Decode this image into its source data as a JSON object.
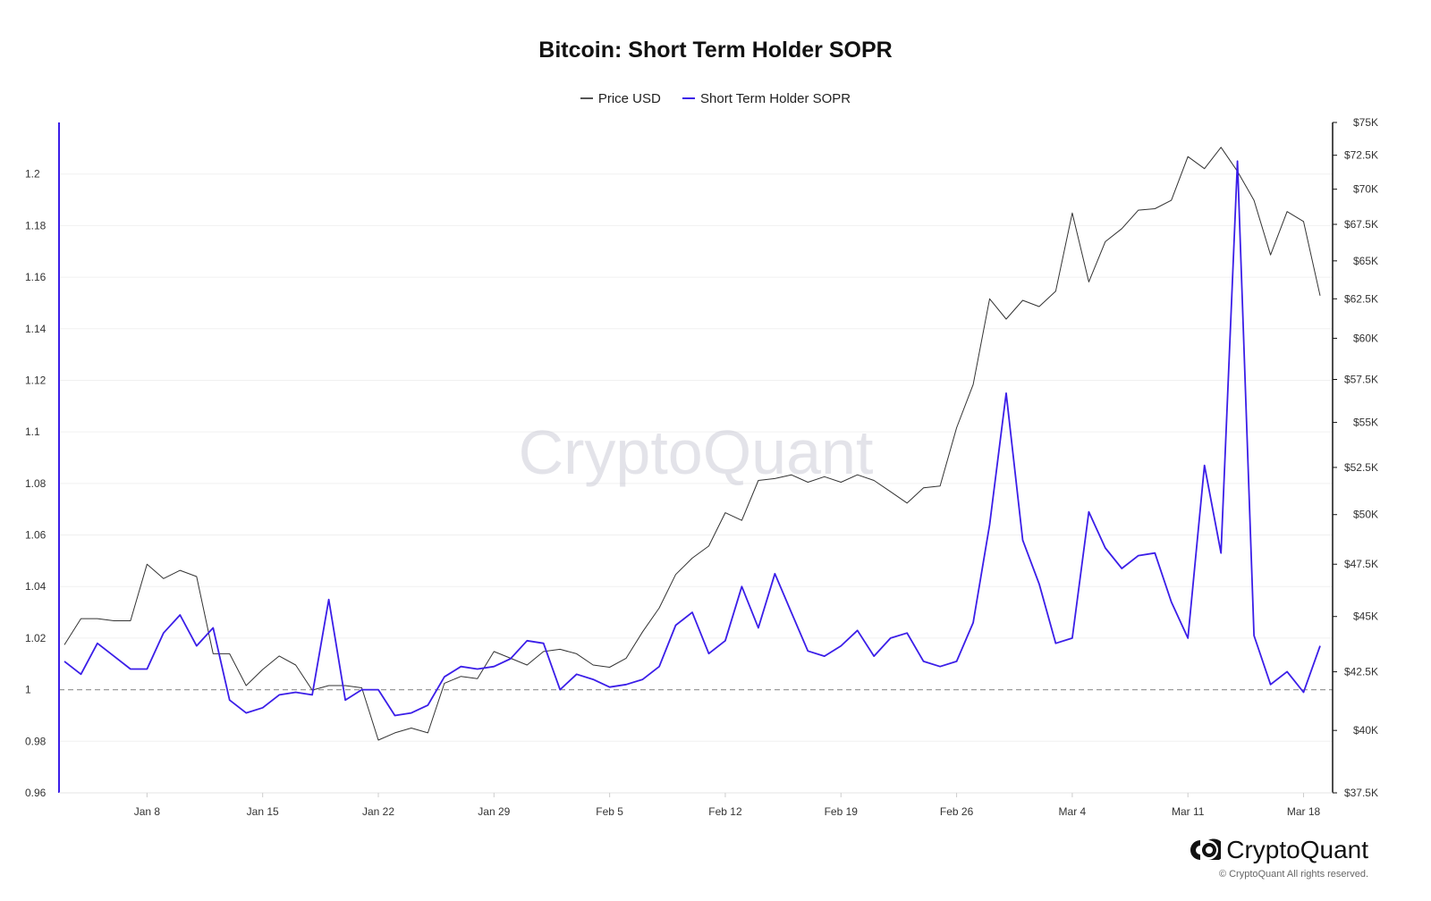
{
  "chart_data": {
    "type": "line",
    "title": "Bitcoin: Short Term Holder SOPR",
    "legend": [
      "Price USD",
      "Short Term Holder SOPR"
    ],
    "legend_position": "top-center",
    "watermark": "CryptoQuant",
    "x_tick_labels": [
      "Jan 8",
      "Jan 15",
      "Jan 22",
      "Jan 29",
      "Feb 5",
      "Feb 12",
      "Feb 19",
      "Feb 26",
      "Mar 4",
      "Mar 11",
      "Mar 18"
    ],
    "x_tick_index": [
      5,
      12,
      19,
      26,
      33,
      40,
      47,
      54,
      61,
      68,
      75
    ],
    "left_axis": {
      "ticks": [
        "0.96",
        "0.98",
        "1",
        "1.02",
        "1.04",
        "1.06",
        "1.08",
        "1.1",
        "1.12",
        "1.14",
        "1.16",
        "1.18",
        "1.2"
      ],
      "ylim": [
        0.96,
        1.22
      ],
      "color": "#3b1ee8"
    },
    "right_axis": {
      "ticks": [
        "$37.5K",
        "$40K",
        "$42.5K",
        "$45K",
        "$47.5K",
        "$50K",
        "$52.5K",
        "$55K",
        "$57.5K",
        "$60K",
        "$62.5K",
        "$65K",
        "$67.5K",
        "$70K",
        "$72.5K",
        "$75K"
      ],
      "ylim": [
        37500,
        75000
      ],
      "scale": "log",
      "color": "#111111"
    },
    "reference_line": {
      "y": 1,
      "style": "dashed"
    },
    "series": [
      {
        "name": "Price USD",
        "axis": "right",
        "color": "#333333",
        "values": [
          43700,
          44900,
          44900,
          44800,
          44800,
          47500,
          46800,
          47200,
          46900,
          43300,
          43300,
          41900,
          42600,
          43200,
          42800,
          41700,
          41900,
          41900,
          41800,
          39600,
          39900,
          40100,
          39900,
          42000,
          42300,
          42200,
          43400,
          43100,
          42800,
          43400,
          43500,
          43300,
          42800,
          42700,
          43100,
          44300,
          45400,
          47000,
          47800,
          48400,
          50100,
          49700,
          51800,
          51900,
          52100,
          51700,
          52000,
          51700,
          52100,
          51800,
          51200,
          50600,
          51400,
          51500,
          54700,
          57200,
          62500,
          61200,
          62400,
          62000,
          63000,
          68300,
          63600,
          66300,
          67200,
          68500,
          68600,
          69200,
          72400,
          71500,
          73100,
          71300,
          69200,
          65400,
          68400,
          67700,
          62700
        ],
        "x_index_start": 0
      },
      {
        "name": "Short Term Holder SOPR",
        "axis": "left",
        "color": "#3b1ee8",
        "values": [
          1.011,
          1.006,
          1.018,
          1.013,
          1.008,
          1.008,
          1.022,
          1.029,
          1.017,
          1.024,
          0.996,
          0.991,
          0.993,
          0.998,
          0.999,
          0.998,
          1.035,
          0.996,
          1.0,
          1.0,
          0.99,
          0.991,
          0.994,
          1.005,
          1.009,
          1.008,
          1.009,
          1.012,
          1.019,
          1.018,
          1.0,
          1.006,
          1.004,
          1.001,
          1.002,
          1.004,
          1.009,
          1.025,
          1.03,
          1.014,
          1.019,
          1.04,
          1.024,
          1.045,
          1.03,
          1.015,
          1.013,
          1.017,
          1.023,
          1.013,
          1.02,
          1.022,
          1.011,
          1.009,
          1.011,
          1.026,
          1.064,
          1.115,
          1.058,
          1.041,
          1.018,
          1.02,
          1.069,
          1.055,
          1.047,
          1.052,
          1.053,
          1.034,
          1.02,
          1.087,
          1.053,
          1.205,
          1.021,
          1.002,
          1.007,
          0.999,
          1.017
        ],
        "x_index_start": 0
      }
    ]
  },
  "brand": {
    "name": "CryptoQuant",
    "copyright": "© CryptoQuant All rights reserved."
  }
}
